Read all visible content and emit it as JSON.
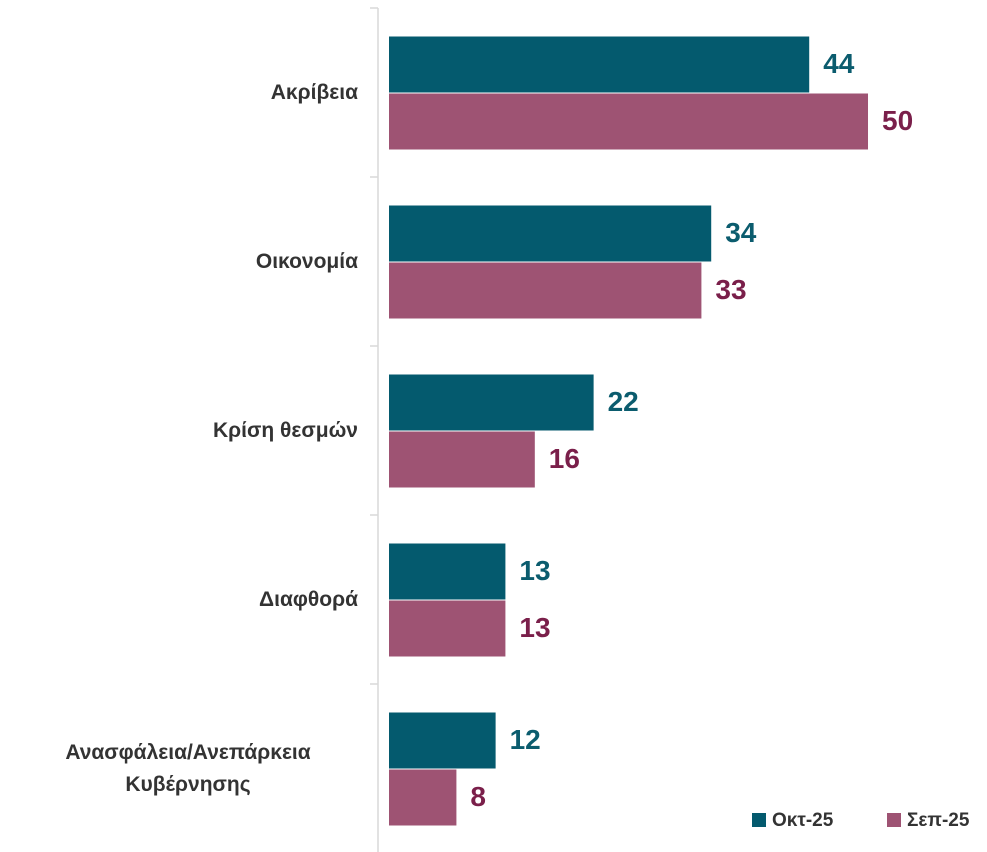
{
  "chart_data": {
    "type": "hbar",
    "categories": [
      "Ακρίβεια",
      "Οικονομία",
      "Κρίση θεσμών",
      "Διαφθορά",
      "Ανασφάλεια/Ανεπάρκεια Κυβέρνησης"
    ],
    "series": [
      {
        "name": "Οκτ-25",
        "color": "#045a6e",
        "label_color": "#0b5c6e",
        "values": [
          44,
          34,
          22,
          13,
          12
        ]
      },
      {
        "name": "Σεπ-25",
        "color": "#9e5373",
        "label_color": "#7a1f4a",
        "values": [
          50,
          33,
          16,
          13,
          8
        ]
      }
    ],
    "legend": "bottom-right"
  }
}
